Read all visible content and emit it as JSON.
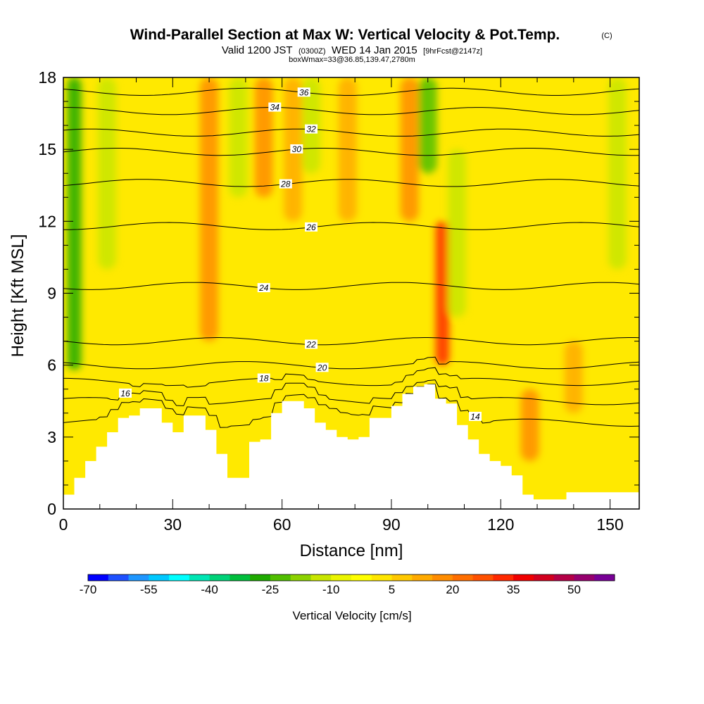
{
  "header": {
    "title": "Wind-Parallel Section at Max W: Vertical Velocity & Pot.Temp.",
    "copyright": "(C)",
    "valid_prefix": "Valid 1200 JST",
    "valid_utc": "(0300Z)",
    "valid_date": "WED 14 Jan 2015",
    "forecast": "[9hrFcst@2147z]",
    "box_info": "boxWmax=33@36.85,139.47,2780m"
  },
  "chart_data": {
    "type": "heatmap",
    "title": "Wind-Parallel Section at Max W: Vertical Velocity & Pot.Temp.",
    "xlabel": "Distance [nm]",
    "ylabel": "Height [Kft MSL]",
    "xlim": [
      0,
      158
    ],
    "ylim": [
      0,
      18
    ],
    "x_ticks": [
      0,
      30,
      60,
      90,
      120,
      150
    ],
    "y_ticks": [
      0,
      3,
      6,
      9,
      12,
      15,
      18
    ],
    "colorbar": {
      "title": "Vertical Velocity [cm/s]",
      "levels": [
        -70,
        -65,
        -60,
        -55,
        -50,
        -45,
        -40,
        -35,
        -30,
        -25,
        -20,
        -15,
        -10,
        -5,
        0,
        5,
        10,
        15,
        20,
        25,
        30,
        35,
        40,
        45,
        50,
        55,
        60
      ],
      "tick_labels": [
        "-70",
        "-55",
        "-40",
        "-25",
        "-10",
        "5",
        "20",
        "35",
        "50"
      ],
      "colors": [
        "#0000ff",
        "#1e50ff",
        "#1e96ff",
        "#00c8ff",
        "#00ffff",
        "#00e6b4",
        "#00d278",
        "#00be3c",
        "#1eaa00",
        "#50be00",
        "#8cd200",
        "#c8e600",
        "#ebf500",
        "#ffff00",
        "#ffe600",
        "#ffc800",
        "#ffaa00",
        "#ff8c00",
        "#ff6e00",
        "#ff5000",
        "#ff2800",
        "#f00000",
        "#d2001e",
        "#b40046",
        "#96006e",
        "#780096"
      ]
    },
    "velocity_features": [
      {
        "x": 3,
        "bottom": 5.8,
        "top": 18,
        "w": -30
      },
      {
        "x": 12,
        "bottom": 10,
        "top": 18,
        "w": -12
      },
      {
        "x": 40,
        "bottom": 7,
        "top": 18,
        "w": 15
      },
      {
        "x": 48,
        "bottom": 13,
        "top": 18,
        "w": -15
      },
      {
        "x": 55,
        "bottom": 13,
        "top": 18,
        "w": 15
      },
      {
        "x": 63,
        "bottom": 12,
        "top": 18,
        "w": 12
      },
      {
        "x": 68,
        "bottom": 14,
        "top": 18,
        "w": -12
      },
      {
        "x": 78,
        "bottom": 12,
        "top": 18,
        "w": 10
      },
      {
        "x": 95,
        "bottom": 12,
        "top": 18,
        "w": 18
      },
      {
        "x": 100,
        "bottom": 14,
        "top": 18,
        "w": -25
      },
      {
        "x": 104,
        "bottom": 6,
        "top": 12,
        "w": 33
      },
      {
        "x": 108,
        "bottom": 8,
        "top": 15,
        "w": -15
      },
      {
        "x": 128,
        "bottom": 2,
        "top": 5,
        "w": 15
      },
      {
        "x": 140,
        "bottom": 4,
        "top": 7,
        "w": 12
      },
      {
        "x": 152,
        "bottom": 10,
        "top": 18,
        "w": -12
      }
    ],
    "terrain": {
      "x": [
        0,
        3,
        6,
        9,
        12,
        15,
        18,
        21,
        24,
        27,
        30,
        33,
        36,
        39,
        42,
        45,
        48,
        51,
        54,
        57,
        60,
        63,
        66,
        69,
        72,
        75,
        78,
        81,
        84,
        87,
        90,
        93,
        96,
        99,
        102,
        105,
        108,
        111,
        114,
        117,
        120,
        123,
        126,
        129,
        132,
        135,
        138,
        141,
        144,
        147,
        150,
        153,
        156,
        158
      ],
      "height_kft": [
        0.6,
        1.3,
        2.0,
        2.6,
        3.2,
        3.8,
        3.9,
        4.2,
        4.2,
        3.6,
        3.2,
        3.9,
        3.9,
        3.3,
        2.3,
        1.3,
        1.3,
        2.8,
        2.9,
        4.0,
        4.5,
        4.5,
        4.2,
        3.6,
        3.3,
        3.0,
        2.9,
        3.0,
        3.8,
        3.8,
        4.3,
        4.8,
        5.1,
        5.2,
        4.6,
        4.4,
        3.5,
        2.9,
        2.3,
        2.0,
        1.8,
        1.4,
        0.6,
        0.4,
        0.4,
        0.4,
        0.7,
        0.7,
        0.7,
        0.7,
        0.7,
        0.7,
        0.7,
        0.7
      ]
    },
    "theta_contours": [
      {
        "label": "14",
        "base_kft": 3.6,
        "label_x": 113
      },
      {
        "label": "16",
        "base_kft": 4.5,
        "label_x": 17
      },
      {
        "label": "18",
        "base_kft": 5.3,
        "label_x": 55
      },
      {
        "label": "20",
        "base_kft": 6.0,
        "label_x": 71
      },
      {
        "label": "22",
        "base_kft": 7.0,
        "label_x": 68
      },
      {
        "label": "24",
        "base_kft": 9.3,
        "label_x": 55
      },
      {
        "label": "26",
        "base_kft": 11.8,
        "label_x": 68
      },
      {
        "label": "28",
        "base_kft": 13.6,
        "label_x": 61
      },
      {
        "label": "30",
        "base_kft": 14.9,
        "label_x": 64
      },
      {
        "label": "32",
        "base_kft": 15.7,
        "label_x": 68
      },
      {
        "label": "34",
        "base_kft": 16.6,
        "label_x": 58
      },
      {
        "label": "36",
        "base_kft": 17.4,
        "label_x": 66
      }
    ]
  }
}
